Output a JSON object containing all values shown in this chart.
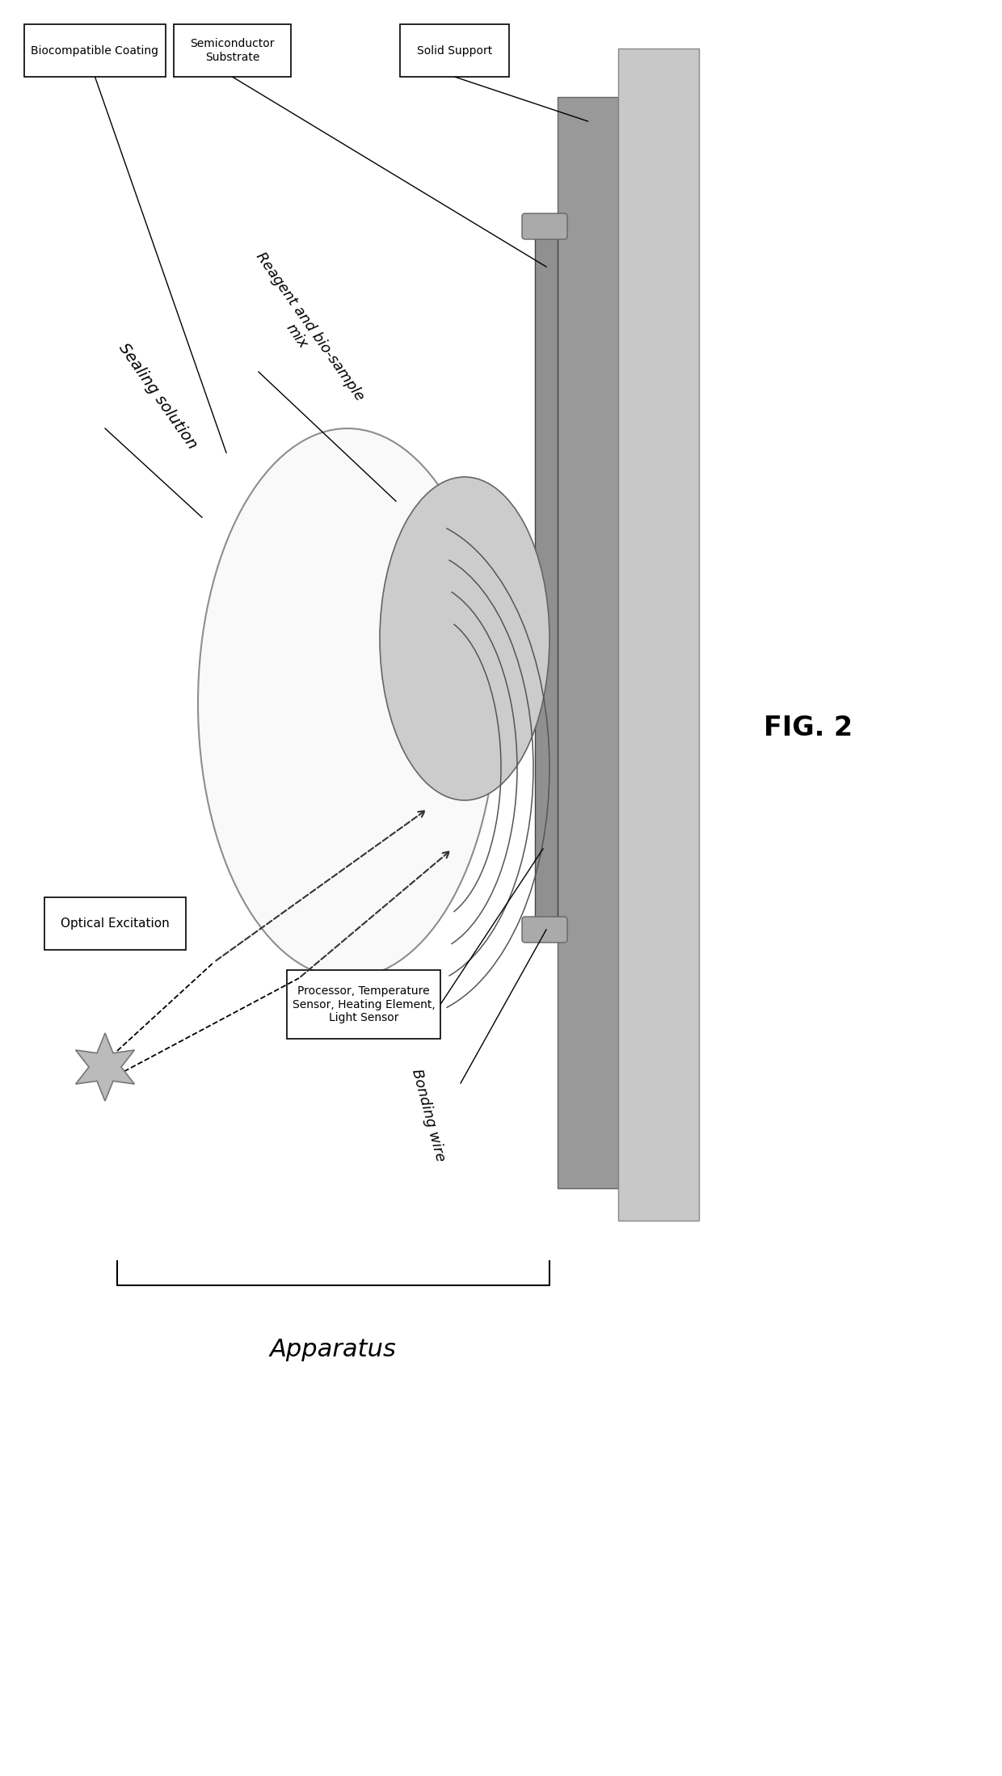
{
  "fig_label": "FIG. 2",
  "background_color": "#ffffff",
  "labels": {
    "biocompatible_coating": "Biocompatible Coating",
    "semiconductor_substrate": "Semiconductor\nSubstrate",
    "solid_support": "Solid Support",
    "sealing_solution": "Sealing solution",
    "reagent_mix": "Reagent and bio-sample\nmix",
    "optical_excitation": "Optical Excitation",
    "processor": "Processor, Temperature\nSensor, Heating Element,\nLight Sensor",
    "bonding_wire": "Bonding wire",
    "apparatus": "Apparatus"
  },
  "colors": {
    "box_edge": "#000000",
    "box_fill": "#ffffff",
    "solid_support_dark": "#999999",
    "solid_support_light": "#c8c8c8",
    "semiconductor_fill": "#aaaaaa",
    "reagent_fill": "#cccccc",
    "line": "#000000",
    "arrow": "#444444",
    "star_fill": "#bbbbbb",
    "star_edge": "#777777"
  }
}
